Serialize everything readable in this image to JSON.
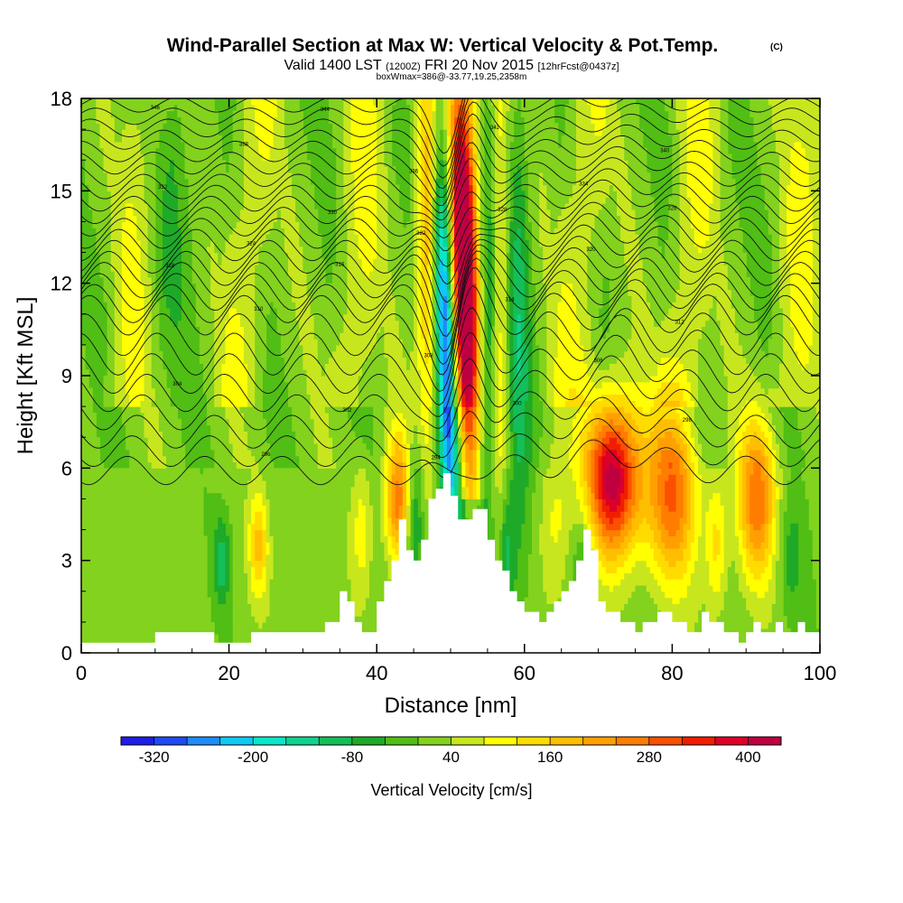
{
  "header": {
    "title_main": "Wind-Parallel Section at Max W: Vertical Velocity & Pot.Temp.",
    "title_mark": "(C)",
    "valid_a": "Valid 1400 LST",
    "valid_b": "(1200Z)",
    "valid_c": "FRI 20 Nov 2015",
    "valid_d": "[12hrFcst@0437z]",
    "box_info": "boxWmax=386@-33.77,19.25,2358m"
  },
  "chart_data": {
    "type": "heatmap",
    "xlabel": "Distance [nm]",
    "ylabel": "Height [Kft MSL]",
    "xlim": [
      0,
      100
    ],
    "ylim": [
      0,
      18
    ],
    "x_ticks": [
      "0",
      "20",
      "40",
      "60",
      "80",
      "100"
    ],
    "y_ticks": [
      "0",
      "3",
      "6",
      "9",
      "12",
      "15",
      "18"
    ],
    "colorbar": {
      "label": "Vertical Velocity [cm/s]",
      "tick_labels": [
        "-320",
        "-200",
        "-80",
        "40",
        "160",
        "280",
        "400"
      ],
      "levels": [
        -360,
        -320,
        -280,
        -240,
        -200,
        -160,
        -120,
        -80,
        -40,
        0,
        40,
        80,
        120,
        160,
        200,
        240,
        280,
        320,
        360,
        400,
        440
      ],
      "colors": [
        "#1e1ee6",
        "#1e4bf5",
        "#1e8cfa",
        "#0fc8f5",
        "#0ae6c8",
        "#0fd28c",
        "#14be5a",
        "#1eaa28",
        "#50be14",
        "#82d21e",
        "#c8e61e",
        "#ffff00",
        "#ffdc00",
        "#ffbe00",
        "#ffa000",
        "#ff7d00",
        "#fa5000",
        "#f01e00",
        "#dc0028",
        "#be0041"
      ]
    },
    "terrain": [
      [
        0,
        0.33
      ],
      [
        10,
        0.33
      ],
      [
        10,
        0.67
      ],
      [
        18,
        0.67
      ],
      [
        18,
        0.33
      ],
      [
        23,
        0.33
      ],
      [
        23,
        0.67
      ],
      [
        33,
        0.67
      ],
      [
        33,
        1
      ],
      [
        35,
        1
      ],
      [
        35,
        2
      ],
      [
        36,
        2
      ],
      [
        36,
        1.67
      ],
      [
        37,
        1.67
      ],
      [
        37,
        1
      ],
      [
        38,
        1
      ],
      [
        38,
        0.67
      ],
      [
        40,
        0.67
      ],
      [
        40,
        1.67
      ],
      [
        41,
        1.67
      ],
      [
        41,
        2.33
      ],
      [
        42,
        2.33
      ],
      [
        42,
        3
      ],
      [
        43,
        3
      ],
      [
        43,
        4.33
      ],
      [
        44,
        4.33
      ],
      [
        44,
        3.33
      ],
      [
        45,
        3.33
      ],
      [
        45,
        3
      ],
      [
        46,
        3
      ],
      [
        46,
        3.67
      ],
      [
        47,
        3.67
      ],
      [
        47,
        5
      ],
      [
        48,
        5
      ],
      [
        48,
        5.33
      ],
      [
        49,
        5.33
      ],
      [
        49,
        5.83
      ],
      [
        50,
        5.83
      ],
      [
        50,
        5.1
      ],
      [
        51,
        5.1
      ],
      [
        51,
        4.33
      ],
      [
        53,
        4.33
      ],
      [
        53,
        4.67
      ],
      [
        55,
        4.67
      ],
      [
        55,
        3.67
      ],
      [
        56,
        3.67
      ],
      [
        56,
        3
      ],
      [
        57,
        3
      ],
      [
        57,
        2.67
      ],
      [
        58,
        2.67
      ],
      [
        58,
        2
      ],
      [
        59,
        2
      ],
      [
        59,
        1.67
      ],
      [
        60,
        1.67
      ],
      [
        60,
        1.33
      ],
      [
        62,
        1.33
      ],
      [
        62,
        1
      ],
      [
        63,
        1
      ],
      [
        63,
        1.33
      ],
      [
        64,
        1.33
      ],
      [
        64,
        1.67
      ],
      [
        65,
        1.67
      ],
      [
        65,
        2
      ],
      [
        66,
        2
      ],
      [
        66,
        2.33
      ],
      [
        67,
        2.33
      ],
      [
        67,
        3
      ],
      [
        68,
        3
      ],
      [
        68,
        4
      ],
      [
        69,
        4
      ],
      [
        69,
        3.33
      ],
      [
        70,
        3.33
      ],
      [
        70,
        1.67
      ],
      [
        71,
        1.67
      ],
      [
        71,
        1.33
      ],
      [
        73,
        1.33
      ],
      [
        73,
        1
      ],
      [
        75,
        1
      ],
      [
        75,
        0.67
      ],
      [
        76,
        0.67
      ],
      [
        76,
        1
      ],
      [
        78,
        1
      ],
      [
        78,
        1.33
      ],
      [
        80,
        1.33
      ],
      [
        80,
        1
      ],
      [
        82,
        1
      ],
      [
        82,
        0.67
      ],
      [
        84,
        0.67
      ],
      [
        84,
        1.33
      ],
      [
        85,
        1.33
      ],
      [
        85,
        1
      ],
      [
        87,
        1
      ],
      [
        87,
        0.67
      ],
      [
        89,
        0.67
      ],
      [
        89,
        0.33
      ],
      [
        90,
        0.33
      ],
      [
        90,
        0.67
      ],
      [
        91,
        0.67
      ],
      [
        91,
        1
      ],
      [
        92,
        1
      ],
      [
        92,
        0.67
      ],
      [
        94,
        0.67
      ],
      [
        94,
        1
      ],
      [
        95,
        1
      ],
      [
        95,
        0.67
      ],
      [
        97,
        0.67
      ],
      [
        97,
        1
      ],
      [
        98,
        1
      ],
      [
        98,
        0.67
      ],
      [
        100,
        0.67
      ],
      [
        100,
        0
      ]
    ],
    "theta_labels": [
      "346",
      "344",
      "342",
      "340",
      "338",
      "336",
      "334",
      "332",
      "330",
      "328",
      "326",
      "324",
      "322",
      "320",
      "318",
      "316",
      "314",
      "312",
      "310",
      "308",
      "306",
      "304",
      "302",
      "300",
      "298",
      "296",
      "294"
    ]
  }
}
